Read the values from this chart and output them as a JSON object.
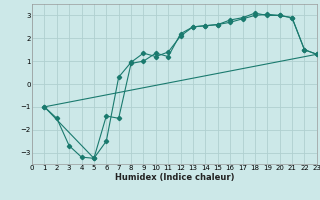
{
  "title": "",
  "xlabel": "Humidex (Indice chaleur)",
  "ylabel": "",
  "bg_color": "#cce8e8",
  "grid_color": "#b0d0d0",
  "line_color": "#1a7a6e",
  "xlim": [
    0,
    23
  ],
  "ylim": [
    -3.5,
    3.5
  ],
  "xticks": [
    0,
    1,
    2,
    3,
    4,
    5,
    6,
    7,
    8,
    9,
    10,
    11,
    12,
    13,
    14,
    15,
    16,
    17,
    18,
    19,
    20,
    21,
    22,
    23
  ],
  "yticks": [
    -3,
    -2,
    -1,
    0,
    1,
    2,
    3
  ],
  "line1_x": [
    1,
    2,
    3,
    4,
    5,
    6,
    7,
    8,
    9,
    10,
    11,
    12,
    13,
    14,
    15,
    16,
    17,
    18,
    19,
    20,
    21,
    22,
    23
  ],
  "line1_y": [
    -1.0,
    -1.5,
    -2.7,
    -3.2,
    -3.25,
    -1.4,
    -1.5,
    0.9,
    1.0,
    1.35,
    1.2,
    2.2,
    2.5,
    2.55,
    2.6,
    2.8,
    2.9,
    3.1,
    3.0,
    3.0,
    2.9,
    1.5,
    1.3
  ],
  "line2_x": [
    1,
    5,
    6,
    7,
    8,
    9,
    10,
    11,
    12,
    13,
    14,
    15,
    16,
    17,
    18,
    19,
    20,
    21,
    22,
    23
  ],
  "line2_y": [
    -1.0,
    -3.25,
    -2.5,
    0.3,
    0.95,
    1.35,
    1.2,
    1.4,
    2.1,
    2.5,
    2.55,
    2.6,
    2.7,
    2.85,
    3.0,
    3.05,
    3.0,
    2.9,
    1.5,
    1.3
  ],
  "line3_x": [
    1,
    23
  ],
  "line3_y": [
    -1.0,
    1.3
  ],
  "marker": "D",
  "marker_size": 2.2,
  "linewidth": 0.8
}
